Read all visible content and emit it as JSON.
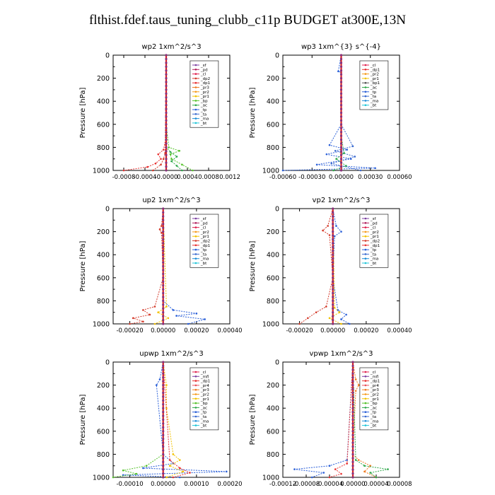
{
  "title": "flthist.fdef.taus_tuning_clubb_c11p  BUDGET at300E,13N",
  "colors": {
    "_sf": "#7b3fa0",
    "_pd": "#b01e5c",
    "_cl": "#e0204e",
    "_mfl": "#7b3fa0",
    "_dp1": "#e83030",
    "_dp2": "#d43a2a",
    "_pr1": "#f2c200",
    "_pr2": "#f59a1a",
    "_pr3": "#f07a20",
    "_pr4": "#e8505a",
    "_bp": "#55c22a",
    "_ac": "#2ea84a",
    "_tp": "#2a5fd8",
    "_ta": "#3a6ad0",
    "_ma": "#1f8fd8",
    "_bt": "#22c6d8"
  },
  "chart_data": [
    {
      "type": "line",
      "title": "wp2",
      "units": "1xm^2/s^3",
      "ylabel": "Pressure [hPa]",
      "ylim": [
        1000,
        0
      ],
      "xlim": [
        -0.001,
        0.0012
      ],
      "xticks": [
        "-0.0008",
        "-0.0004",
        "-0.0000",
        "0.0004",
        "0.0008",
        "0.0012"
      ],
      "xtick_values": [
        -0.0008,
        -0.0004,
        0,
        0.0004,
        0.0008,
        0.0012
      ],
      "yticks": [
        "0",
        "200",
        "400",
        "600",
        "800",
        "1000"
      ],
      "ytick_values": [
        0,
        200,
        400,
        600,
        800,
        1000
      ],
      "legend": [
        "_sf",
        "_pd",
        "_cl",
        "_dp2",
        "_dp1",
        "_pr3",
        "_pr2",
        "_pr1",
        "_bp",
        "_ac",
        "_tp",
        "_ta",
        "_ma",
        "_bt"
      ],
      "series": [
        {
          "name": "_bp",
          "p": [
            0,
            600,
            800,
            830,
            860,
            900,
            950,
            1000
          ],
          "x": [
            0,
            0,
            5e-05,
            0.00025,
            8e-05,
            0.0001,
            0.0003,
            0.0005
          ]
        },
        {
          "name": "_ac",
          "p": [
            0,
            800,
            840,
            880,
            920,
            960,
            1000
          ],
          "x": [
            0,
            0,
            8e-05,
            0.0002,
            0.0001,
            0.0002,
            0.0003
          ]
        },
        {
          "name": "_dp1",
          "p": [
            0,
            700,
            820,
            860,
            900,
            940,
            970,
            1000
          ],
          "x": [
            0,
            0,
            -5e-05,
            -0.00015,
            -0.0001,
            -0.0002,
            -0.00035,
            -0.0008
          ]
        },
        {
          "name": "_dp2",
          "p": [
            0,
            850,
            900,
            950,
            1000
          ],
          "x": [
            0,
            -2e-05,
            -5e-05,
            -0.0001,
            -0.00025
          ]
        },
        {
          "name": "_pd",
          "p": [
            0,
            1000
          ],
          "x": [
            0,
            0
          ]
        },
        {
          "name": "_sf",
          "p": [
            0,
            1000
          ],
          "x": [
            0,
            0
          ]
        }
      ]
    },
    {
      "type": "line",
      "title": "wp3",
      "units": "1xm^{3} s^{-4}",
      "ylabel": "Pressure [hPa]",
      "ylim": [
        1000,
        0
      ],
      "xlim": [
        -0.0006,
        0.0006
      ],
      "xticks": [
        "-0.00060",
        "-0.00030",
        "0.00000",
        "0.00030",
        "0.00060"
      ],
      "xtick_values": [
        -0.0006,
        -0.0003,
        0,
        0.0003,
        0.0006
      ],
      "yticks": [
        "0",
        "200",
        "400",
        "600",
        "800",
        "1000"
      ],
      "ytick_values": [
        0,
        200,
        400,
        600,
        800,
        1000
      ],
      "legend": [
        "_cl",
        "_dp1",
        "_pr2",
        "_pr1",
        "_bp1",
        "_ac",
        "_tp",
        "_ta",
        "_ma",
        "_bt"
      ],
      "series": [
        {
          "name": "_tp",
          "p": [
            0,
            140,
            150,
            600,
            780,
            820,
            860,
            900,
            950,
            980,
            1000
          ],
          "x": [
            0,
            -3e-05,
            0,
            0,
            -0.00012,
            6e-05,
            -0.00015,
            0.0001,
            -0.00025,
            0.00035,
            -0.0006
          ]
        },
        {
          "name": "_ta",
          "p": [
            0,
            600,
            790,
            830,
            880,
            940,
            1000
          ],
          "x": [
            0,
            0,
            0.00012,
            -6e-05,
            0.00014,
            -0.0001,
            0.0002
          ]
        },
        {
          "name": "_ac",
          "p": [
            0,
            700,
            850,
            900,
            960,
            1000
          ],
          "x": [
            0,
            0,
            3e-05,
            -5e-05,
            5e-05,
            -8e-05
          ]
        },
        {
          "name": "_cl",
          "p": [
            0,
            1000
          ],
          "x": [
            0,
            0
          ]
        }
      ]
    },
    {
      "type": "line",
      "title": "up2",
      "units": "1xm^2/s^3",
      "ylabel": "Pressure [hPa]",
      "ylim": [
        1000,
        0
      ],
      "xlim": [
        -0.0003,
        0.0004
      ],
      "xticks": [
        "-0.00020",
        "0.00000",
        "0.00020",
        "0.00040"
      ],
      "xtick_values": [
        -0.0002,
        0,
        0.0002,
        0.0004
      ],
      "yticks": [
        "0",
        "200",
        "400",
        "600",
        "800",
        "1000"
      ],
      "ytick_values": [
        0,
        200,
        400,
        600,
        800,
        1000
      ],
      "legend": [
        "_sf",
        "_pd",
        "_cl",
        "_pr2",
        "_pr1",
        "_dp2",
        "_dp1",
        "_tp",
        "_ta",
        "_ma",
        "_bt"
      ],
      "series": [
        {
          "name": "_dp2",
          "p": [
            0,
            150,
            180,
            210,
            600,
            850,
            880,
            920,
            950,
            980,
            1000
          ],
          "x": [
            0,
            -1e-05,
            -2e-05,
            -1e-05,
            0,
            -5e-05,
            -0.00012,
            -8e-05,
            -0.00018,
            -0.00012,
            -0.0002
          ]
        },
        {
          "name": "_tp",
          "p": [
            0,
            800,
            880,
            910,
            930,
            960,
            1000
          ],
          "x": [
            0,
            0,
            6e-05,
            0.0002,
            8e-05,
            0.00025,
            0.00015
          ]
        },
        {
          "name": "_pr1",
          "p": [
            0,
            850,
            900,
            950,
            1000
          ],
          "x": [
            0,
            2e-05,
            -3e-05,
            3e-05,
            -5e-05
          ]
        },
        {
          "name": "_cl",
          "p": [
            0,
            1000
          ],
          "x": [
            0,
            0
          ]
        }
      ]
    },
    {
      "type": "line",
      "title": "vp2",
      "units": "1xm^2/s^3",
      "ylabel": "Pressure [hPa]",
      "ylim": [
        1000,
        0
      ],
      "xlim": [
        -0.0003,
        0.0004
      ],
      "xticks": [
        "-0.00020",
        "0.00000",
        "0.00020",
        "0.00040"
      ],
      "xtick_values": [
        -0.0002,
        0,
        0.0002,
        0.0004
      ],
      "yticks": [
        "0",
        "200",
        "400",
        "600",
        "800",
        "1000"
      ],
      "ytick_values": [
        0,
        200,
        400,
        600,
        800,
        1000
      ],
      "legend": [
        "_sf",
        "_pd",
        "_cl",
        "_pr2",
        "_pr1",
        "_dp2",
        "_dp1",
        "_tp",
        "_ta",
        "_ma",
        "_bt"
      ],
      "series": [
        {
          "name": "_dp2",
          "p": [
            0,
            150,
            190,
            230,
            600,
            850,
            900,
            950,
            1000
          ],
          "x": [
            0,
            -3e-05,
            -6e-05,
            -2e-05,
            0,
            -4e-05,
            -0.0001,
            -0.00015,
            -0.0002
          ]
        },
        {
          "name": "_tp",
          "p": [
            0,
            150,
            200,
            240,
            600,
            880,
            920,
            960,
            1000
          ],
          "x": [
            0,
            2e-05,
            5e-05,
            1e-05,
            0,
            3e-05,
            8e-05,
            5e-05,
            0.0001
          ]
        },
        {
          "name": "_pr1",
          "p": [
            0,
            860,
            900,
            950,
            1000
          ],
          "x": [
            0,
            1e-05,
            4e-05,
            -2e-05,
            5e-05
          ]
        },
        {
          "name": "_cl",
          "p": [
            0,
            1000
          ],
          "x": [
            0,
            0
          ]
        }
      ]
    },
    {
      "type": "line",
      "title": "upwp",
      "units": "1xm^2/s^3",
      "ylabel": "Pressure [hPa]",
      "ylim": [
        1000,
        0
      ],
      "xlim": [
        -0.00015,
        0.0002
      ],
      "xticks": [
        "-0.00010",
        "0.00000",
        "0.00010",
        "0.00020"
      ],
      "xtick_values": [
        -0.0001,
        0,
        0.0001,
        0.0002
      ],
      "yticks": [
        "0",
        "200",
        "400",
        "600",
        "800",
        "1000"
      ],
      "ytick_values": [
        0,
        200,
        400,
        600,
        800,
        1000
      ],
      "legend": [
        "_cl",
        "_mfl",
        "_dp1",
        "_pr4",
        "_pr3",
        "_pr2",
        "_pr1",
        "_bp",
        "_ac",
        "_tp",
        "_ta",
        "_ma",
        "_bt"
      ],
      "series": [
        {
          "name": "_tp",
          "p": [
            0,
            150,
            200,
            800,
            880,
            920,
            950,
            980,
            1000
          ],
          "x": [
            0,
            -1e-05,
            -2e-05,
            0,
            3e-05,
            -6e-05,
            0.00019,
            -0.00012,
            5e-05
          ]
        },
        {
          "name": "_pr1",
          "p": [
            0,
            200,
            400,
            800,
            850,
            900,
            950,
            1000
          ],
          "x": [
            0,
            1e-05,
            1e-05,
            3e-05,
            5e-05,
            2e-05,
            6e-05,
            1e-05
          ]
        },
        {
          "name": "_bp",
          "p": [
            0,
            800,
            900,
            940,
            970,
            1000
          ],
          "x": [
            0,
            0,
            -5e-05,
            -0.00012,
            -8e-05,
            -0.00015
          ]
        },
        {
          "name": "_dp1",
          "p": [
            0,
            850,
            920,
            960,
            1000
          ],
          "x": [
            0,
            2e-05,
            5e-05,
            8e-05,
            3e-05
          ]
        },
        {
          "name": "_cl",
          "p": [
            0,
            1000
          ],
          "x": [
            0,
            0
          ]
        }
      ]
    },
    {
      "type": "line",
      "title": "vpwp",
      "units": "1xm^2/s^3",
      "ylabel": "Pressure [hPa]",
      "ylim": [
        1000,
        0
      ],
      "xlim": [
        -0.00012,
        8e-05
      ],
      "xticks": [
        "-0.00012",
        "-0.00008",
        "-0.00004",
        "0.00000",
        "0.00004",
        "0.00008"
      ],
      "xtick_values": [
        -0.00012,
        -8e-05,
        -4e-05,
        0,
        4e-05,
        8e-05
      ],
      "yticks": [
        "0",
        "200",
        "400",
        "600",
        "800",
        "1000"
      ],
      "ytick_values": [
        0,
        200,
        400,
        600,
        800,
        1000
      ],
      "legend": [
        "_cl",
        "_mfl",
        "_dp1",
        "_pr4",
        "_pr3",
        "_pr2",
        "_pr1",
        "_bp",
        "_ac",
        "_tp",
        "_ta",
        "_ma",
        "_bt"
      ],
      "series": [
        {
          "name": "_pr3",
          "p": [
            0,
            150,
            200,
            250,
            800,
            850,
            900,
            950,
            1000
          ],
          "x": [
            0,
            5e-06,
            1e-05,
            5e-06,
            0,
            1e-05,
            3e-05,
            2e-05,
            4e-05
          ]
        },
        {
          "name": "_ac",
          "p": [
            0,
            850,
            900,
            930,
            960,
            1000
          ],
          "x": [
            0,
            5e-06,
            2e-05,
            6e-05,
            3e-05,
            4e-05
          ]
        },
        {
          "name": "_tp",
          "p": [
            0,
            850,
            900,
            930,
            960,
            1000
          ],
          "x": [
            0,
            -1e-05,
            -4e-05,
            -0.0001,
            -5e-05,
            -7e-05
          ]
        },
        {
          "name": "_dp1",
          "p": [
            0,
            880,
            930,
            970,
            1000
          ],
          "x": [
            0,
            -1e-05,
            -3e-05,
            -2e-05,
            -4e-05
          ]
        },
        {
          "name": "_cl",
          "p": [
            0,
            1000
          ],
          "x": [
            0,
            0
          ]
        }
      ]
    }
  ]
}
